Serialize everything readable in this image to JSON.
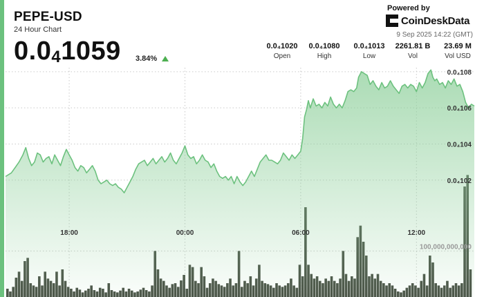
{
  "header": {
    "pair": "PEPE-USD",
    "subtitle": "24 Hour Chart",
    "price_main": "0.0",
    "price_sub": "4",
    "price_rest": "1059",
    "change": "3.84%",
    "change_direction": "up",
    "up_color": "#4caf50"
  },
  "brand": {
    "powered_by": "Powered by",
    "name": "CoinDeskData",
    "timestamp": "9 Sep 2025 14:22 (GMT)"
  },
  "stats": [
    {
      "value": "0.0₄1020",
      "label": "Open"
    },
    {
      "value": "0.0₄1080",
      "label": "High"
    },
    {
      "value": "0.0₄1013",
      "label": "Low"
    },
    {
      "value": "2261.81 B",
      "label": "Vol"
    },
    {
      "value": "23.69 M",
      "label": "Vol USD"
    }
  ],
  "chart_data": {
    "type": "area",
    "x_tick_labels": [
      "18:00",
      "00:00",
      "06:00",
      "12:00"
    ],
    "x_tick_hours": [
      3,
      9,
      15,
      21
    ],
    "x_range_hours": [
      -0.3,
      24
    ],
    "y_tick_labels": [
      "0.0₄108",
      "0.0₄106",
      "0.0₄104",
      "0.0₄102"
    ],
    "y_tick_values": [
      1.08,
      1.06,
      1.04,
      1.02
    ],
    "y_unit": "×10^-4 USD",
    "ylim": [
      1.005,
      1.083
    ],
    "volume_tick_label": "100,000,000,000",
    "volume_tick_value": 100000000000,
    "volume_ylim": [
      0,
      270000000000
    ],
    "line_color": "#6cc17e",
    "fill_color": "#8fd09c",
    "volume_color": "#4a5246",
    "price_series": [
      [
        -0.3,
        1.022
      ],
      [
        0,
        1.024
      ],
      [
        0.2,
        1.027
      ],
      [
        0.4,
        1.03
      ],
      [
        0.6,
        1.034
      ],
      [
        0.75,
        1.038
      ],
      [
        0.9,
        1.032
      ],
      [
        1.05,
        1.028
      ],
      [
        1.2,
        1.03
      ],
      [
        1.35,
        1.035
      ],
      [
        1.5,
        1.034
      ],
      [
        1.65,
        1.03
      ],
      [
        1.8,
        1.032
      ],
      [
        1.95,
        1.033
      ],
      [
        2.1,
        1.029
      ],
      [
        2.25,
        1.034
      ],
      [
        2.4,
        1.031
      ],
      [
        2.55,
        1.028
      ],
      [
        2.7,
        1.033
      ],
      [
        2.85,
        1.037
      ],
      [
        3.0,
        1.034
      ],
      [
        3.15,
        1.031
      ],
      [
        3.3,
        1.027
      ],
      [
        3.45,
        1.025
      ],
      [
        3.6,
        1.028
      ],
      [
        3.75,
        1.027
      ],
      [
        3.9,
        1.024
      ],
      [
        4.05,
        1.026
      ],
      [
        4.2,
        1.028
      ],
      [
        4.35,
        1.025
      ],
      [
        4.5,
        1.02
      ],
      [
        4.65,
        1.018
      ],
      [
        4.8,
        1.019
      ],
      [
        4.95,
        1.02
      ],
      [
        5.1,
        1.018
      ],
      [
        5.25,
        1.017
      ],
      [
        5.4,
        1.018
      ],
      [
        5.55,
        1.016
      ],
      [
        5.7,
        1.015
      ],
      [
        5.85,
        1.013
      ],
      [
        6.0,
        1.016
      ],
      [
        6.15,
        1.019
      ],
      [
        6.3,
        1.022
      ],
      [
        6.45,
        1.026
      ],
      [
        6.6,
        1.029
      ],
      [
        6.75,
        1.03
      ],
      [
        6.9,
        1.031
      ],
      [
        7.05,
        1.028
      ],
      [
        7.2,
        1.03
      ],
      [
        7.35,
        1.032
      ],
      [
        7.5,
        1.029
      ],
      [
        7.65,
        1.031
      ],
      [
        7.8,
        1.033
      ],
      [
        7.95,
        1.03
      ],
      [
        8.1,
        1.032
      ],
      [
        8.25,
        1.035
      ],
      [
        8.4,
        1.031
      ],
      [
        8.55,
        1.029
      ],
      [
        8.7,
        1.032
      ],
      [
        8.85,
        1.035
      ],
      [
        9.0,
        1.039
      ],
      [
        9.15,
        1.034
      ],
      [
        9.3,
        1.032
      ],
      [
        9.45,
        1.033
      ],
      [
        9.6,
        1.029
      ],
      [
        9.75,
        1.031
      ],
      [
        9.9,
        1.034
      ],
      [
        10.05,
        1.031
      ],
      [
        10.2,
        1.03
      ],
      [
        10.35,
        1.027
      ],
      [
        10.5,
        1.029
      ],
      [
        10.65,
        1.025
      ],
      [
        10.8,
        1.022
      ],
      [
        10.95,
        1.021
      ],
      [
        11.1,
        1.022
      ],
      [
        11.25,
        1.02
      ],
      [
        11.4,
        1.022
      ],
      [
        11.55,
        1.018
      ],
      [
        11.7,
        1.022
      ],
      [
        11.85,
        1.019
      ],
      [
        12.0,
        1.017
      ],
      [
        12.15,
        1.019
      ],
      [
        12.3,
        1.022
      ],
      [
        12.45,
        1.025
      ],
      [
        12.6,
        1.022
      ],
      [
        12.75,
        1.026
      ],
      [
        12.9,
        1.03
      ],
      [
        13.05,
        1.032
      ],
      [
        13.2,
        1.034
      ],
      [
        13.35,
        1.031
      ],
      [
        13.5,
        1.031
      ],
      [
        13.65,
        1.03
      ],
      [
        13.8,
        1.029
      ],
      [
        13.95,
        1.031
      ],
      [
        14.1,
        1.035
      ],
      [
        14.25,
        1.033
      ],
      [
        14.4,
        1.031
      ],
      [
        14.55,
        1.034
      ],
      [
        14.7,
        1.032
      ],
      [
        14.85,
        1.034
      ],
      [
        15.0,
        1.036
      ],
      [
        15.1,
        1.043
      ],
      [
        15.2,
        1.055
      ],
      [
        15.3,
        1.059
      ],
      [
        15.4,
        1.064
      ],
      [
        15.5,
        1.06
      ],
      [
        15.65,
        1.065
      ],
      [
        15.8,
        1.061
      ],
      [
        15.95,
        1.062
      ],
      [
        16.1,
        1.06
      ],
      [
        16.25,
        1.063
      ],
      [
        16.4,
        1.061
      ],
      [
        16.55,
        1.066
      ],
      [
        16.7,
        1.062
      ],
      [
        16.85,
        1.06
      ],
      [
        17.0,
        1.062
      ],
      [
        17.15,
        1.06
      ],
      [
        17.3,
        1.064
      ],
      [
        17.45,
        1.069
      ],
      [
        17.6,
        1.07
      ],
      [
        17.75,
        1.069
      ],
      [
        17.9,
        1.071
      ],
      [
        18.0,
        1.077
      ],
      [
        18.15,
        1.08
      ],
      [
        18.3,
        1.079
      ],
      [
        18.45,
        1.078
      ],
      [
        18.6,
        1.073
      ],
      [
        18.75,
        1.075
      ],
      [
        18.9,
        1.072
      ],
      [
        19.05,
        1.07
      ],
      [
        19.2,
        1.074
      ],
      [
        19.35,
        1.071
      ],
      [
        19.5,
        1.072
      ],
      [
        19.65,
        1.075
      ],
      [
        19.8,
        1.072
      ],
      [
        19.95,
        1.07
      ],
      [
        20.1,
        1.068
      ],
      [
        20.25,
        1.072
      ],
      [
        20.4,
        1.073
      ],
      [
        20.55,
        1.071
      ],
      [
        20.7,
        1.073
      ],
      [
        20.85,
        1.072
      ],
      [
        21.0,
        1.069
      ],
      [
        21.15,
        1.074
      ],
      [
        21.3,
        1.071
      ],
      [
        21.45,
        1.074
      ],
      [
        21.6,
        1.079
      ],
      [
        21.75,
        1.081
      ],
      [
        21.85,
        1.077
      ],
      [
        21.95,
        1.075
      ],
      [
        22.05,
        1.076
      ],
      [
        22.2,
        1.073
      ],
      [
        22.35,
        1.074
      ],
      [
        22.5,
        1.071
      ],
      [
        22.65,
        1.075
      ],
      [
        22.8,
        1.073
      ],
      [
        22.95,
        1.076
      ],
      [
        23.1,
        1.072
      ],
      [
        23.25,
        1.073
      ],
      [
        23.4,
        1.069
      ],
      [
        23.55,
        1.063
      ],
      [
        23.7,
        1.06
      ],
      [
        23.85,
        1.062
      ],
      [
        24.0,
        1.061
      ]
    ],
    "volume_series": [
      [
        -0.2,
        0.18
      ],
      [
        -0.05,
        0.12
      ],
      [
        0.1,
        0.22
      ],
      [
        0.25,
        0.42
      ],
      [
        0.4,
        0.55
      ],
      [
        0.55,
        0.35
      ],
      [
        0.7,
        0.78
      ],
      [
        0.85,
        0.85
      ],
      [
        1.0,
        0.3
      ],
      [
        1.15,
        0.25
      ],
      [
        1.3,
        0.22
      ],
      [
        1.45,
        0.45
      ],
      [
        1.6,
        0.25
      ],
      [
        1.75,
        0.55
      ],
      [
        1.9,
        0.4
      ],
      [
        2.05,
        0.35
      ],
      [
        2.2,
        0.3
      ],
      [
        2.35,
        0.55
      ],
      [
        2.5,
        0.25
      ],
      [
        2.65,
        0.6
      ],
      [
        2.8,
        0.35
      ],
      [
        2.95,
        0.22
      ],
      [
        3.1,
        0.18
      ],
      [
        3.25,
        0.12
      ],
      [
        3.4,
        0.2
      ],
      [
        3.55,
        0.16
      ],
      [
        3.7,
        0.1
      ],
      [
        3.85,
        0.14
      ],
      [
        4.0,
        0.18
      ],
      [
        4.15,
        0.25
      ],
      [
        4.3,
        0.15
      ],
      [
        4.45,
        0.12
      ],
      [
        4.6,
        0.2
      ],
      [
        4.75,
        0.18
      ],
      [
        4.9,
        0.1
      ],
      [
        5.05,
        0.3
      ],
      [
        5.2,
        0.15
      ],
      [
        5.35,
        0.12
      ],
      [
        5.5,
        0.1
      ],
      [
        5.65,
        0.14
      ],
      [
        5.8,
        0.2
      ],
      [
        5.95,
        0.12
      ],
      [
        6.1,
        0.18
      ],
      [
        6.25,
        0.14
      ],
      [
        6.4,
        0.1
      ],
      [
        6.55,
        0.12
      ],
      [
        6.7,
        0.16
      ],
      [
        6.85,
        0.2
      ],
      [
        7.0,
        0.15
      ],
      [
        7.15,
        0.12
      ],
      [
        7.3,
        0.25
      ],
      [
        7.45,
        1.0
      ],
      [
        7.6,
        0.6
      ],
      [
        7.75,
        0.4
      ],
      [
        7.9,
        0.35
      ],
      [
        8.05,
        0.25
      ],
      [
        8.2,
        0.2
      ],
      [
        8.35,
        0.28
      ],
      [
        8.5,
        0.3
      ],
      [
        8.65,
        0.22
      ],
      [
        8.8,
        0.36
      ],
      [
        8.95,
        0.48
      ],
      [
        9.1,
        0.18
      ],
      [
        9.25,
        0.7
      ],
      [
        9.4,
        0.65
      ],
      [
        9.55,
        0.35
      ],
      [
        9.7,
        0.3
      ],
      [
        9.85,
        0.65
      ],
      [
        10.0,
        0.45
      ],
      [
        10.15,
        0.2
      ],
      [
        10.3,
        0.3
      ],
      [
        10.45,
        0.4
      ],
      [
        10.6,
        0.35
      ],
      [
        10.75,
        0.28
      ],
      [
        10.9,
        0.25
      ],
      [
        11.05,
        0.22
      ],
      [
        11.2,
        0.3
      ],
      [
        11.35,
        0.4
      ],
      [
        11.5,
        0.25
      ],
      [
        11.65,
        0.3
      ],
      [
        11.8,
        1.0
      ],
      [
        11.95,
        0.22
      ],
      [
        12.1,
        0.35
      ],
      [
        12.25,
        0.3
      ],
      [
        12.4,
        0.45
      ],
      [
        12.55,
        0.25
      ],
      [
        12.7,
        0.4
      ],
      [
        12.85,
        0.7
      ],
      [
        13.0,
        0.35
      ],
      [
        13.15,
        0.3
      ],
      [
        13.3,
        0.28
      ],
      [
        13.45,
        0.25
      ],
      [
        13.6,
        0.2
      ],
      [
        13.75,
        0.3
      ],
      [
        13.9,
        0.25
      ],
      [
        14.05,
        0.22
      ],
      [
        14.2,
        0.25
      ],
      [
        14.35,
        0.3
      ],
      [
        14.5,
        0.4
      ],
      [
        14.65,
        0.25
      ],
      [
        14.8,
        0.2
      ],
      [
        14.95,
        0.7
      ],
      [
        15.1,
        0.45
      ],
      [
        15.25,
        1.95
      ],
      [
        15.4,
        0.7
      ],
      [
        15.55,
        0.5
      ],
      [
        15.7,
        0.4
      ],
      [
        15.85,
        0.45
      ],
      [
        16.0,
        0.35
      ],
      [
        16.15,
        0.3
      ],
      [
        16.3,
        0.4
      ],
      [
        16.45,
        0.35
      ],
      [
        16.6,
        0.45
      ],
      [
        16.75,
        0.35
      ],
      [
        16.9,
        0.3
      ],
      [
        17.05,
        0.4
      ],
      [
        17.2,
        1.0
      ],
      [
        17.35,
        0.5
      ],
      [
        17.5,
        0.35
      ],
      [
        17.65,
        0.45
      ],
      [
        17.8,
        0.4
      ],
      [
        17.95,
        1.3
      ],
      [
        18.1,
        1.55
      ],
      [
        18.25,
        1.2
      ],
      [
        18.4,
        0.9
      ],
      [
        18.55,
        0.45
      ],
      [
        18.7,
        0.5
      ],
      [
        18.85,
        0.4
      ],
      [
        19.0,
        0.5
      ],
      [
        19.15,
        0.35
      ],
      [
        19.3,
        0.3
      ],
      [
        19.45,
        0.25
      ],
      [
        19.6,
        0.3
      ],
      [
        19.75,
        0.25
      ],
      [
        19.9,
        0.18
      ],
      [
        20.05,
        0.12
      ],
      [
        20.2,
        0.1
      ],
      [
        20.35,
        0.14
      ],
      [
        20.5,
        0.2
      ],
      [
        20.65,
        0.25
      ],
      [
        20.8,
        0.3
      ],
      [
        20.95,
        0.25
      ],
      [
        21.1,
        0.2
      ],
      [
        21.25,
        0.35
      ],
      [
        21.4,
        0.5
      ],
      [
        21.55,
        0.25
      ],
      [
        21.7,
        0.9
      ],
      [
        21.85,
        0.75
      ],
      [
        22.0,
        0.3
      ],
      [
        22.15,
        0.25
      ],
      [
        22.3,
        0.2
      ],
      [
        22.45,
        0.25
      ],
      [
        22.6,
        0.35
      ],
      [
        22.75,
        0.2
      ],
      [
        22.9,
        0.25
      ],
      [
        23.05,
        0.3
      ],
      [
        23.2,
        0.25
      ],
      [
        23.35,
        0.3
      ],
      [
        23.5,
        2.4
      ],
      [
        23.65,
        2.65
      ],
      [
        23.8,
        0.6
      ]
    ]
  }
}
